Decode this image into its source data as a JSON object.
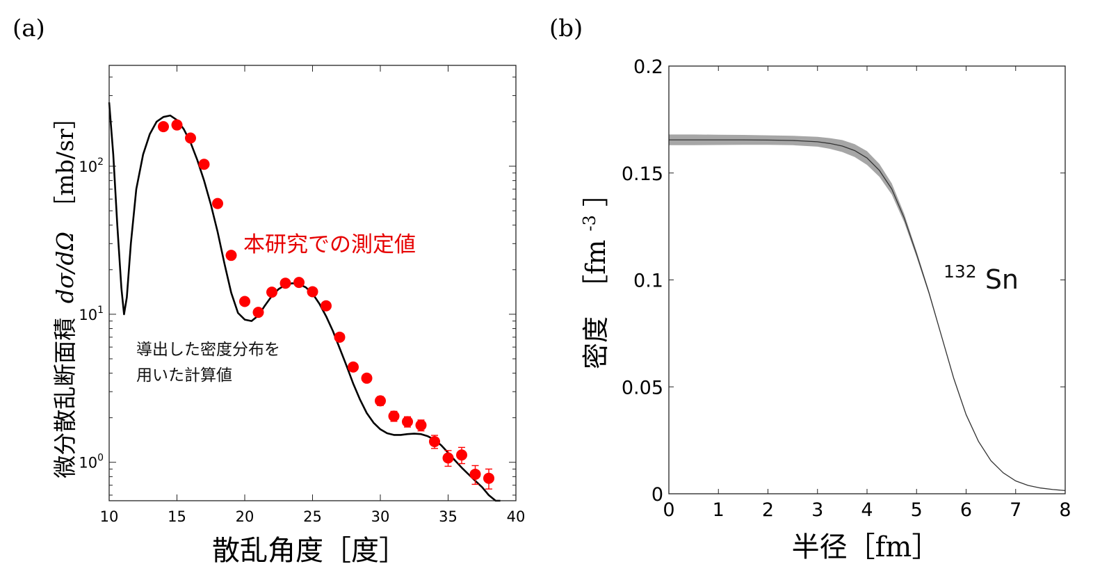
{
  "colors": {
    "points": "#ff0000",
    "annotation_red": "#e60000",
    "line": "#000000",
    "band": "#a6a6a6"
  },
  "chart_data": [
    {
      "type": "scatter",
      "panel_label": "(a)",
      "xlabel": "散乱角度［度］",
      "ylabel_jp": "微分散乱断面積",
      "ylabel_symbol": "dσ/dΩ",
      "ylabel_unit": "［mb/sr］",
      "yscale": "log",
      "xlim": [
        10,
        40
      ],
      "ylim": [
        0.55,
        480
      ],
      "x_ticks": [
        "10",
        "15",
        "20",
        "25",
        "30",
        "35",
        "40"
      ],
      "y_ticks": [
        {
          "value": 1,
          "base": "10",
          "exp": "0"
        },
        {
          "value": 10,
          "base": "10",
          "exp": "1"
        },
        {
          "value": 100,
          "base": "10",
          "exp": "2"
        }
      ],
      "annotations": {
        "measured": "本研究での測定値",
        "calc_line1": "導出した密度分布を",
        "calc_line2": "用いた計算値"
      },
      "series": [
        {
          "name": "本研究での測定値",
          "kind": "points_with_error",
          "x": [
            14,
            15,
            16,
            17,
            18,
            19,
            20,
            21,
            22,
            23,
            24,
            25,
            26,
            27,
            28,
            29,
            30,
            31,
            32,
            33,
            34,
            35,
            36,
            37,
            38
          ],
          "y": [
            185,
            190,
            155,
            103,
            56,
            25,
            12.2,
            10.3,
            14.1,
            16.2,
            16.4,
            14.2,
            11.4,
            7.0,
            4.4,
            3.7,
            2.6,
            2.05,
            1.88,
            1.78,
            1.38,
            1.07,
            1.12,
            0.83,
            0.78
          ],
          "yerr": [
            8,
            8,
            6,
            4,
            2.5,
            1.2,
            0.6,
            0.5,
            0.6,
            0.7,
            0.7,
            0.6,
            0.5,
            0.35,
            0.25,
            0.2,
            0.18,
            0.16,
            0.15,
            0.15,
            0.14,
            0.13,
            0.14,
            0.12,
            0.12
          ]
        },
        {
          "name": "導出した密度分布を用いた計算値",
          "kind": "line",
          "x": [
            10.0,
            10.3,
            10.6,
            10.9,
            11.1,
            11.3,
            11.6,
            12.0,
            12.5,
            13.0,
            13.5,
            14.0,
            14.5,
            15.0,
            15.5,
            16.0,
            16.5,
            17.0,
            17.5,
            18.0,
            18.5,
            19.0,
            19.5,
            20.0,
            20.5,
            21.0,
            21.5,
            22.0,
            22.5,
            23.0,
            23.5,
            24.0,
            24.5,
            25.0,
            25.5,
            26.0,
            26.5,
            27.0,
            27.5,
            28.0,
            28.5,
            29.0,
            29.5,
            30.0,
            30.5,
            31.0,
            31.5,
            32.0,
            32.5,
            33.0,
            33.5,
            34.0,
            34.5,
            35.0,
            35.5,
            36.0,
            36.5,
            37.0,
            37.5,
            38.0,
            38.5
          ],
          "y": [
            270,
            120,
            40,
            15,
            10,
            13,
            30,
            70,
            120,
            165,
            200,
            215,
            220,
            205,
            178,
            145,
            110,
            80,
            55,
            36,
            22,
            14,
            10.2,
            9.2,
            9.0,
            9.8,
            11.5,
            13.3,
            14.8,
            15.8,
            16.2,
            16.0,
            15.2,
            13.8,
            11.8,
            9.7,
            7.7,
            5.9,
            4.5,
            3.4,
            2.65,
            2.15,
            1.85,
            1.67,
            1.57,
            1.53,
            1.53,
            1.55,
            1.56,
            1.55,
            1.5,
            1.42,
            1.3,
            1.16,
            1.03,
            0.92,
            0.83,
            0.75,
            0.68,
            0.6,
            0.52
          ]
        }
      ]
    },
    {
      "type": "line",
      "panel_label": "(b)",
      "xlabel": "半径［fm］",
      "ylabel_jp": "密度",
      "ylabel_unit_prefix": "［fm",
      "ylabel_unit_exp": "-3",
      "ylabel_unit_suffix": "］",
      "xlim": [
        0,
        8
      ],
      "ylim": [
        0,
        0.2
      ],
      "x_ticks": [
        "0",
        "1",
        "2",
        "3",
        "4",
        "5",
        "6",
        "7",
        "8"
      ],
      "y_ticks": [
        {
          "value": 0,
          "label": "0"
        },
        {
          "value": 0.05,
          "label": "0.05"
        },
        {
          "value": 0.1,
          "label": "0.1"
        },
        {
          "value": 0.15,
          "label": "0.15"
        },
        {
          "value": 0.2,
          "label": "0.2"
        }
      ],
      "annotation_mass": "132",
      "annotation_element": "Sn",
      "series": [
        {
          "kind": "line_with_band",
          "x": [
            0,
            0.5,
            1,
            1.5,
            2,
            2.5,
            3,
            3.25,
            3.5,
            3.75,
            4,
            4.25,
            4.5,
            4.75,
            5,
            5.25,
            5.5,
            5.75,
            6,
            6.25,
            6.5,
            6.75,
            7,
            7.25,
            7.5,
            7.75,
            8
          ],
          "y": [
            0.1655,
            0.1655,
            0.1655,
            0.1655,
            0.1654,
            0.1652,
            0.1646,
            0.1638,
            0.1626,
            0.1605,
            0.157,
            0.1512,
            0.1425,
            0.129,
            0.112,
            0.094,
            0.074,
            0.054,
            0.037,
            0.0245,
            0.0155,
            0.0098,
            0.006,
            0.0039,
            0.0027,
            0.002,
            0.0015
          ],
          "band": [
            0.0025,
            0.0025,
            0.0024,
            0.0023,
            0.0022,
            0.0022,
            0.0023,
            0.0025,
            0.0028,
            0.003,
            0.0032,
            0.003,
            0.0026,
            0.002,
            0.0014,
            0.0009,
            0.0006,
            0.0005,
            0.0004,
            0.0003,
            0.0002,
            0.0002,
            0.0001,
            0.0001,
            0.0001,
            0.0001,
            0.0001
          ]
        }
      ]
    }
  ]
}
